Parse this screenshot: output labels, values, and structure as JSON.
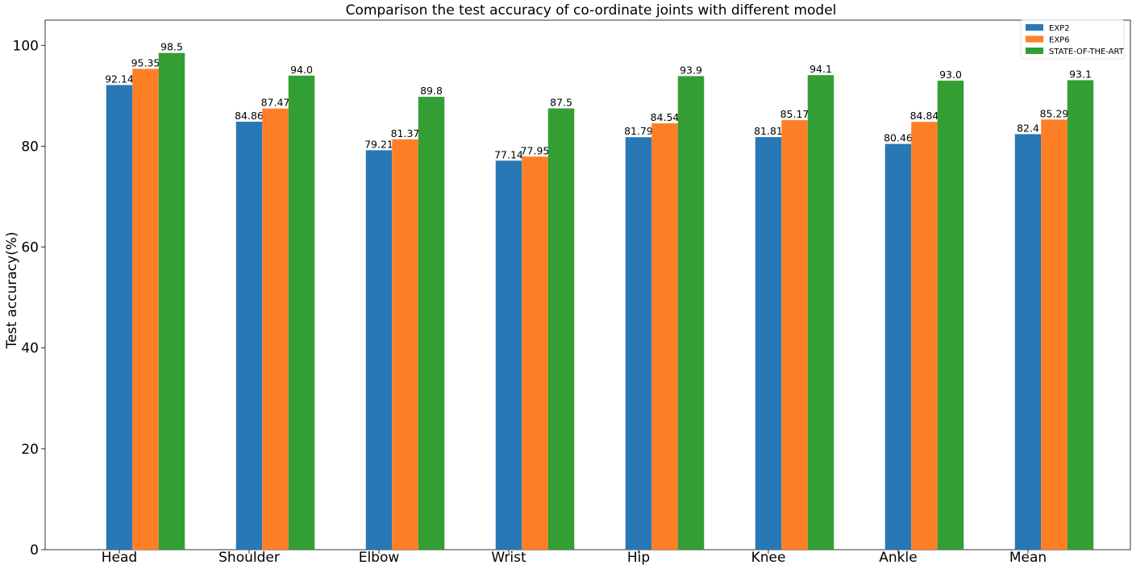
{
  "chart_data": {
    "type": "bar",
    "title": "Comparison the test accuracy of co-ordinate joints with different model",
    "xlabel": "",
    "ylabel": "Test accuracy(%)",
    "ylim": [
      0,
      105
    ],
    "yticks": [
      0,
      20,
      40,
      60,
      80,
      100
    ],
    "grid": false,
    "legend_position": "top-right",
    "categories": [
      "Head",
      "Shoulder",
      "Elbow",
      "Wrist",
      "Hip",
      "Knee",
      "Ankle",
      "Mean"
    ],
    "series": [
      {
        "name": "EXP2",
        "color": "#2878b5",
        "values": [
          92.14,
          84.86,
          79.21,
          77.14,
          81.79,
          81.81,
          80.46,
          82.4
        ],
        "labels": [
          "92.14",
          "84.86",
          "79.21",
          "77.14",
          "81.79",
          "81.81",
          "80.46",
          "82.4"
        ]
      },
      {
        "name": "EXP6",
        "color": "#ff7f27",
        "values": [
          95.35,
          87.47,
          81.37,
          77.95,
          84.54,
          85.17,
          84.84,
          85.29
        ],
        "labels": [
          "95.35",
          "87.47",
          "81.37",
          "77.95",
          "84.54",
          "85.17",
          "84.84",
          "85.29"
        ]
      },
      {
        "name": "STATE-OF-THE-ART",
        "color": "#339e33",
        "values": [
          98.5,
          94.0,
          89.8,
          87.5,
          93.9,
          94.1,
          93.0,
          93.1
        ],
        "labels": [
          "98.5",
          "94.0",
          "89.8",
          "87.5",
          "93.9",
          "94.1",
          "93.0",
          "93.1"
        ]
      }
    ]
  }
}
